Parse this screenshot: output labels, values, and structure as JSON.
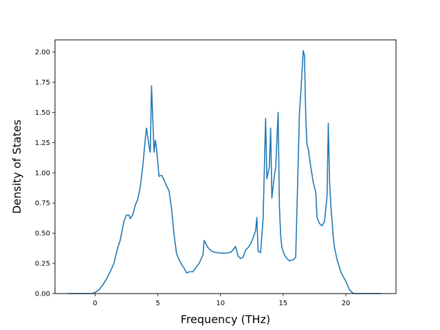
{
  "chart_data": {
    "type": "line",
    "title": "",
    "xlabel": "Frequency (THz)",
    "ylabel": "Density of States",
    "xlim": [
      -3.2,
      24.0
    ],
    "ylim": [
      0.0,
      2.1
    ],
    "xticks": [
      0,
      5,
      10,
      15,
      20
    ],
    "yticks": [
      0.0,
      0.25,
      0.5,
      0.75,
      1.0,
      1.25,
      1.5,
      1.75,
      2.0
    ],
    "xtick_labels": [
      "0",
      "5",
      "10",
      "15",
      "20"
    ],
    "ytick_labels": [
      "0.00",
      "0.25",
      "0.50",
      "0.75",
      "1.00",
      "1.25",
      "1.50",
      "1.75",
      "2.00"
    ],
    "grid": false,
    "line_color": "#1f77b4",
    "series": [
      {
        "x": [
          -2.2,
          -0.2,
          0.0,
          0.3,
          0.6,
          0.9,
          1.2,
          1.5,
          1.8,
          2.0,
          2.3,
          2.5,
          2.7,
          2.8,
          3.0,
          3.2,
          3.4,
          3.6,
          3.8,
          4.0,
          4.1,
          4.3,
          4.4,
          4.5,
          4.7,
          4.8,
          4.9,
          5.1,
          5.3,
          5.5,
          5.7,
          5.9,
          6.1,
          6.3,
          6.5,
          6.7,
          6.9,
          7.1,
          7.3,
          7.5,
          7.8,
          8.0,
          8.3,
          8.6,
          8.7,
          9.0,
          9.3,
          9.6,
          10.0,
          10.4,
          10.8,
          11.0,
          11.2,
          11.4,
          11.6,
          11.8,
          12.0,
          12.2,
          12.4,
          12.6,
          12.8,
          12.9,
          13.0,
          13.2,
          13.4,
          13.6,
          13.7,
          13.9,
          14.0,
          14.1,
          14.3,
          14.4,
          14.6,
          14.7,
          14.8,
          14.9,
          15.1,
          15.3,
          15.5,
          15.8,
          16.0,
          16.3,
          16.4,
          16.6,
          16.7,
          16.8,
          16.9,
          17.0,
          17.2,
          17.4,
          17.6,
          17.7,
          17.9,
          18.1,
          18.3,
          18.5,
          18.6,
          18.7,
          18.8,
          18.9,
          19.0,
          19.1,
          19.3,
          19.6,
          20.0,
          20.3,
          20.6,
          20.8,
          21.0,
          22.8
        ],
        "y": [
          0.0,
          0.0,
          0.01,
          0.03,
          0.07,
          0.12,
          0.18,
          0.25,
          0.38,
          0.44,
          0.6,
          0.65,
          0.65,
          0.62,
          0.65,
          0.73,
          0.78,
          0.88,
          1.05,
          1.28,
          1.37,
          1.22,
          1.17,
          1.72,
          1.17,
          1.27,
          1.2,
          0.97,
          0.98,
          0.94,
          0.89,
          0.85,
          0.7,
          0.48,
          0.33,
          0.28,
          0.24,
          0.21,
          0.17,
          0.18,
          0.18,
          0.21,
          0.25,
          0.32,
          0.44,
          0.38,
          0.35,
          0.34,
          0.335,
          0.335,
          0.34,
          0.36,
          0.39,
          0.31,
          0.29,
          0.3,
          0.36,
          0.38,
          0.41,
          0.46,
          0.52,
          0.63,
          0.35,
          0.34,
          0.62,
          1.45,
          0.95,
          1.05,
          1.37,
          0.79,
          0.98,
          1.04,
          1.5,
          0.72,
          0.48,
          0.38,
          0.32,
          0.29,
          0.27,
          0.28,
          0.3,
          1.5,
          1.65,
          2.01,
          1.97,
          1.47,
          1.23,
          1.2,
          1.05,
          0.92,
          0.84,
          0.63,
          0.58,
          0.56,
          0.6,
          0.81,
          1.41,
          0.93,
          0.73,
          0.6,
          0.46,
          0.38,
          0.28,
          0.18,
          0.1,
          0.03,
          0.0,
          0.0,
          0.0,
          0.0
        ]
      }
    ]
  }
}
